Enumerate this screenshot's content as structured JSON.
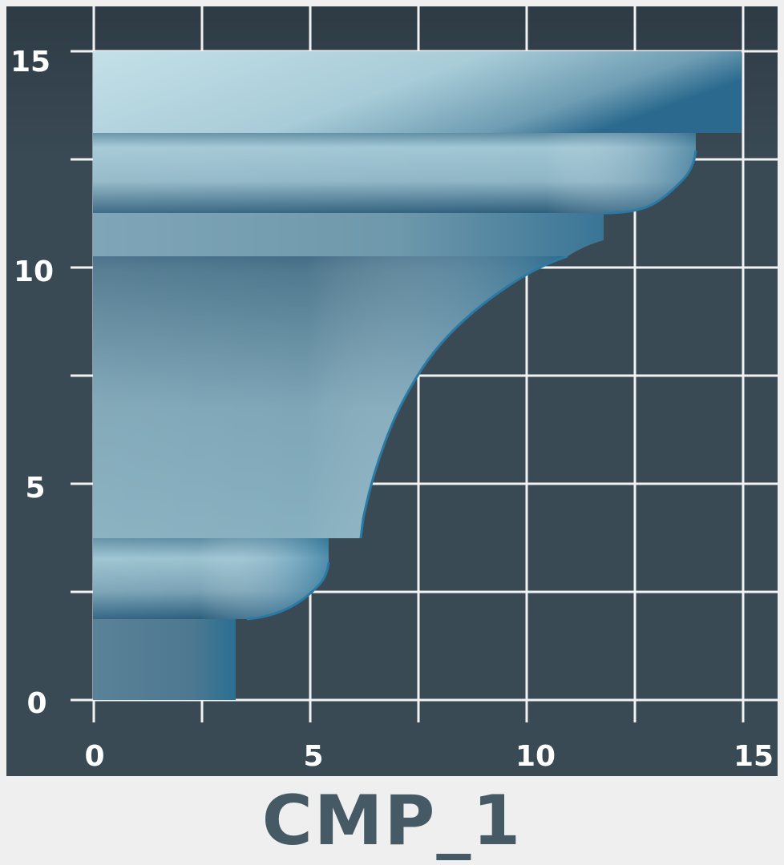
{
  "caption": "CMP_1",
  "axes": {
    "x_ticks": [
      "0",
      "5",
      "10",
      "15"
    ],
    "y_ticks": [
      "0",
      "5",
      "10",
      "15"
    ],
    "range": [
      0,
      15
    ],
    "grid": true
  },
  "colors": {
    "background": "#3a4a55",
    "grid": "#f2f2f2",
    "profile_light": "#b6d8e2",
    "profile_mid": "#87aebe",
    "profile_dark": "#2a6488",
    "caption": "#455a64"
  }
}
